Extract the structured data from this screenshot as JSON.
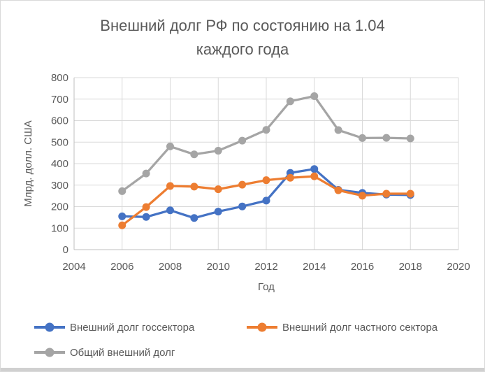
{
  "window": {
    "background": "#ffffff",
    "border_color": "#d9d9d9",
    "bottom_strip_color": "#d0d0d0"
  },
  "chart": {
    "title_line1": "Внешний долг РФ по состоянию на 1.04",
    "title_line2": "каждого года",
    "y_axis_title": "Млрд. долл. США",
    "x_axis_title": "Год",
    "title_color": "#595959",
    "tick_label_color": "#595959",
    "gridline_color": "#d9d9d9",
    "axis_line_color": "#bfbfbf"
  },
  "chart_data": {
    "type": "line",
    "title": "Внешний долг РФ по состоянию на 1.04 каждого года",
    "xlabel": "Год",
    "ylabel": "Млрд. долл. США",
    "x": [
      2006,
      2007,
      2008,
      2009,
      2010,
      2011,
      2012,
      2013,
      2014,
      2015,
      2016,
      2017,
      2018
    ],
    "series": [
      {
        "name": "Внешний долг госсектора",
        "color": "#4472C4",
        "values": [
          155,
          152,
          183,
          147,
          177,
          201,
          228,
          357,
          375,
          278,
          264,
          256,
          254
        ]
      },
      {
        "name": "Внешний долг частного сектора",
        "color": "#ED7D31",
        "values": [
          113,
          198,
          296,
          293,
          281,
          302,
          323,
          334,
          341,
          276,
          251,
          260,
          260
        ]
      },
      {
        "name": "Общий внешний долг",
        "color": "#A5A5A5",
        "values": [
          272,
          354,
          480,
          443,
          460,
          507,
          557,
          690,
          714,
          556,
          519,
          520,
          517
        ]
      }
    ],
    "x_ticks": [
      2004,
      2006,
      2008,
      2010,
      2012,
      2014,
      2016,
      2018,
      2020
    ],
    "y_ticks": [
      0,
      100,
      200,
      300,
      400,
      500,
      600,
      700,
      800
    ],
    "xlim": [
      2004,
      2020
    ],
    "ylim": [
      0,
      800
    ],
    "grid": true,
    "legend_position": "bottom",
    "marker": "circle"
  }
}
